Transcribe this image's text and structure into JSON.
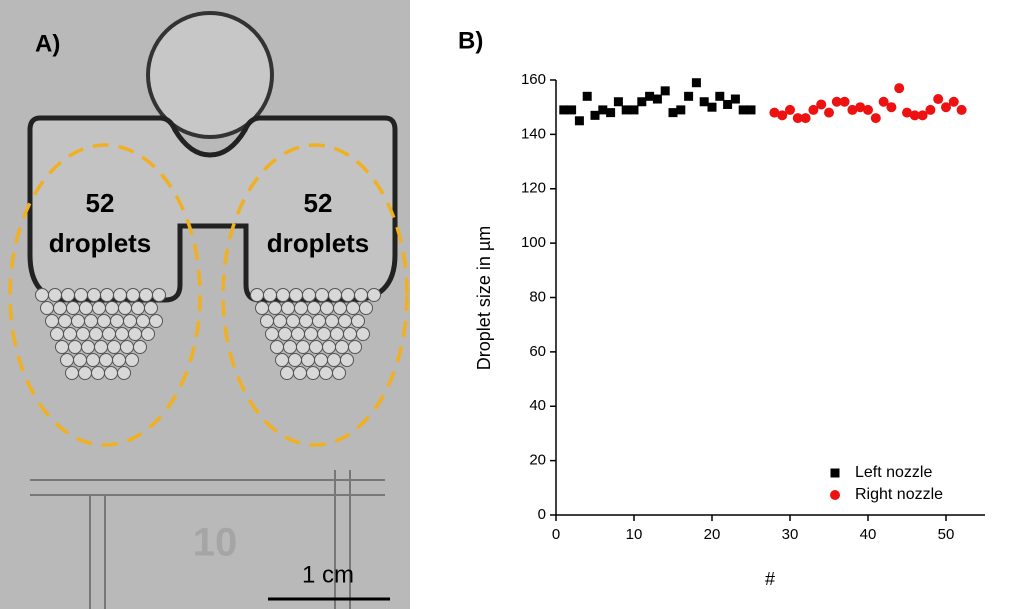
{
  "panel_a": {
    "label": "A)",
    "left_count": "52",
    "left_word": "droplets",
    "right_count": "52",
    "right_word": "droplets",
    "chip_number": "10",
    "scale_bar": "1 cm"
  },
  "chart_data": {
    "type": "scatter",
    "panel_label": "B)",
    "x_label": "#",
    "y_label": "Droplet size in µm",
    "xlim": [
      0,
      55
    ],
    "xticks": [
      0,
      10,
      20,
      30,
      40,
      50
    ],
    "ylim": [
      0,
      160
    ],
    "yticks": [
      0,
      20,
      40,
      60,
      80,
      100,
      120,
      140,
      160
    ],
    "legend": "lower right",
    "series": [
      {
        "name": "Left nozzle",
        "color": "#000000",
        "marker": "square",
        "x": [
          1,
          2,
          3,
          4,
          5,
          6,
          7,
          8,
          9,
          10,
          11,
          12,
          13,
          14,
          15,
          16,
          17,
          18,
          19,
          20,
          21,
          22,
          23,
          24,
          25
        ],
        "values": [
          149,
          149,
          145,
          154,
          147,
          149,
          148,
          152,
          149,
          149,
          152,
          154,
          153,
          156,
          148,
          149,
          154,
          159,
          152,
          150,
          154,
          151,
          153,
          149,
          149
        ]
      },
      {
        "name": "Right nozzle",
        "color": "#ee1111",
        "marker": "circle",
        "x": [
          28,
          29,
          30,
          31,
          32,
          33,
          34,
          35,
          36,
          37,
          38,
          39,
          40,
          41,
          42,
          43,
          44,
          45,
          46,
          47,
          48,
          49,
          50,
          51,
          52
        ],
        "values": [
          148,
          147,
          149,
          146,
          146,
          149,
          151,
          148,
          152,
          152,
          149,
          150,
          149,
          146,
          152,
          150,
          157,
          148,
          147,
          147,
          149,
          153,
          150,
          152,
          149
        ]
      }
    ]
  }
}
